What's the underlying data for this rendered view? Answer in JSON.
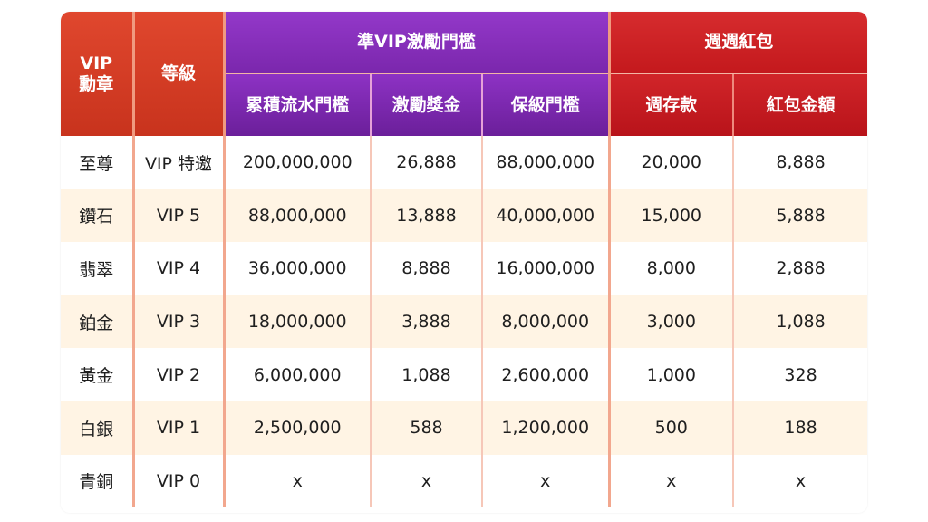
{
  "headers": {
    "vip_badge": "VIP\n勳章",
    "vip_badge_line1": "VIP",
    "vip_badge_line2": "勳章",
    "level": "等級",
    "group_incentive": "準VIP激勵門檻",
    "group_weekly": "週週紅包",
    "turnover_threshold": "累積流水門檻",
    "incentive_bonus": "激勵獎金",
    "guarantee_threshold": "保級門檻",
    "weekly_deposit": "週存款",
    "red_envelope_amount": "紅包金額"
  },
  "colors": {
    "header_red": "#d43d24",
    "header_purple": "#8330b8",
    "header_crimson": "#c81e22",
    "row_alt": "#fff4e4",
    "separator": "#f2a78e"
  },
  "rows": [
    {
      "badge": "至尊",
      "level": "VIP 特邀",
      "turnover": "200,000,000",
      "bonus": "26,888",
      "guarantee": "88,000,000",
      "deposit": "20,000",
      "red": "8,888"
    },
    {
      "badge": "鑽石",
      "level": "VIP 5",
      "turnover": "88,000,000",
      "bonus": "13,888",
      "guarantee": "40,000,000",
      "deposit": "15,000",
      "red": "5,888"
    },
    {
      "badge": "翡翠",
      "level": "VIP 4",
      "turnover": "36,000,000",
      "bonus": "8,888",
      "guarantee": "16,000,000",
      "deposit": "8,000",
      "red": "2,888"
    },
    {
      "badge": "鉑金",
      "level": "VIP 3",
      "turnover": "18,000,000",
      "bonus": "3,888",
      "guarantee": "8,000,000",
      "deposit": "3,000",
      "red": "1,088"
    },
    {
      "badge": "黃金",
      "level": "VIP 2",
      "turnover": "6,000,000",
      "bonus": "1,088",
      "guarantee": "2,600,000",
      "deposit": "1,000",
      "red": "328"
    },
    {
      "badge": "白銀",
      "level": "VIP 1",
      "turnover": "2,500,000",
      "bonus": "588",
      "guarantee": "1,200,000",
      "deposit": "500",
      "red": "188"
    },
    {
      "badge": "青銅",
      "level": "VIP 0",
      "turnover": "x",
      "bonus": "x",
      "guarantee": "x",
      "deposit": "x",
      "red": "x"
    }
  ]
}
